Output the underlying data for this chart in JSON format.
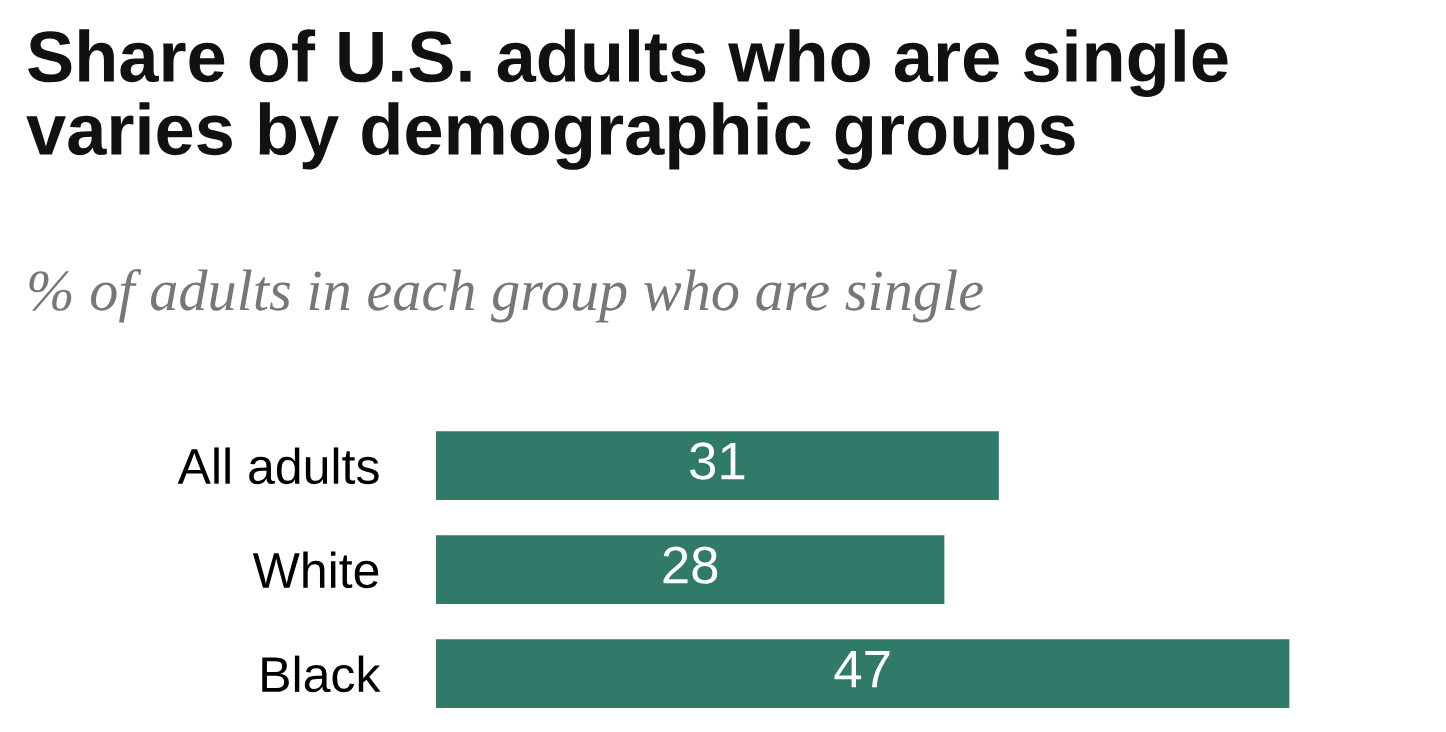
{
  "chart_data": {
    "type": "bar",
    "orientation": "horizontal",
    "title": "Share of U.S. adults who are single\nvaries by demographic groups",
    "subtitle": "% of adults in each group who are single",
    "categories": [
      "All adults",
      "White",
      "Black"
    ],
    "values": [
      31,
      28,
      47
    ],
    "color": "#2f7a68",
    "data_labels": true,
    "grid": false,
    "legend": false
  }
}
